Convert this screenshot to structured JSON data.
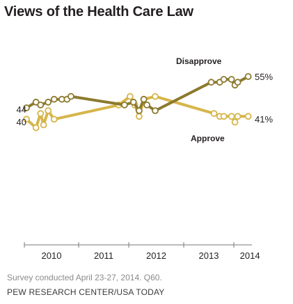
{
  "chart_data": {
    "type": "line",
    "title": "Views of the Health Care Law",
    "xlabel": "",
    "ylabel": "",
    "x_ticks": [
      "2010",
      "2011",
      "2012",
      "2013",
      "2014"
    ],
    "ylim": [
      25,
      65
    ],
    "grid": false,
    "legend": "inline labels",
    "series": [
      {
        "name": "Disapprove",
        "color": "#8c7a2e",
        "points": [
          {
            "x": "2010-01-15",
            "y": 44
          },
          {
            "x": "2010-03-20",
            "y": 46
          },
          {
            "x": "2010-04-20",
            "y": 45
          },
          {
            "x": "2010-06-10",
            "y": 46
          },
          {
            "x": "2010-07-20",
            "y": 47
          },
          {
            "x": "2010-09-10",
            "y": 47
          },
          {
            "x": "2010-10-15",
            "y": 47
          },
          {
            "x": "2010-11-10",
            "y": 48
          },
          {
            "x": "2011-12-01",
            "y": 45
          },
          {
            "x": "2012-02-01",
            "y": 46
          },
          {
            "x": "2012-03-10",
            "y": 43
          },
          {
            "x": "2012-04-10",
            "y": 47
          },
          {
            "x": "2012-05-01",
            "y": 45
          },
          {
            "x": "2012-06-25",
            "y": 43
          },
          {
            "x": "2013-07-20",
            "y": 53
          },
          {
            "x": "2013-09-20",
            "y": 53
          },
          {
            "x": "2013-10-20",
            "y": 54
          },
          {
            "x": "2013-12-15",
            "y": 54
          },
          {
            "x": "2014-01-10",
            "y": 52
          },
          {
            "x": "2014-02-01",
            "y": 53
          },
          {
            "x": "2014-04-25",
            "y": 55
          }
        ]
      },
      {
        "name": "Approve",
        "color": "#d6b54a",
        "points": [
          {
            "x": "2010-01-15",
            "y": 40
          },
          {
            "x": "2010-03-20",
            "y": 37
          },
          {
            "x": "2010-04-20",
            "y": 42
          },
          {
            "x": "2010-05-10",
            "y": 38
          },
          {
            "x": "2010-06-10",
            "y": 43
          },
          {
            "x": "2010-07-20",
            "y": 40
          },
          {
            "x": "2011-10-20",
            "y": 45
          },
          {
            "x": "2012-01-10",
            "y": 48
          },
          {
            "x": "2012-02-10",
            "y": 45
          },
          {
            "x": "2012-03-10",
            "y": 41
          },
          {
            "x": "2012-04-10",
            "y": 47
          },
          {
            "x": "2012-06-25",
            "y": 48
          },
          {
            "x": "2013-08-10",
            "y": 42
          },
          {
            "x": "2013-09-20",
            "y": 41
          },
          {
            "x": "2013-10-20",
            "y": 41
          },
          {
            "x": "2013-12-15",
            "y": 41
          },
          {
            "x": "2014-01-10",
            "y": 39
          },
          {
            "x": "2014-02-01",
            "y": 41
          },
          {
            "x": "2014-04-25",
            "y": 41
          }
        ]
      }
    ],
    "labels": {
      "disapprove": "Disapprove",
      "approve": "Approve",
      "disapprove_start": "44",
      "approve_start": "40",
      "disapprove_end": "55%",
      "approve_end": "41%"
    }
  },
  "footer": {
    "note": "Survey conducted April 23-27, 2014. Q60.",
    "source": "PEW RESEARCH CENTER/USA TODAY"
  }
}
